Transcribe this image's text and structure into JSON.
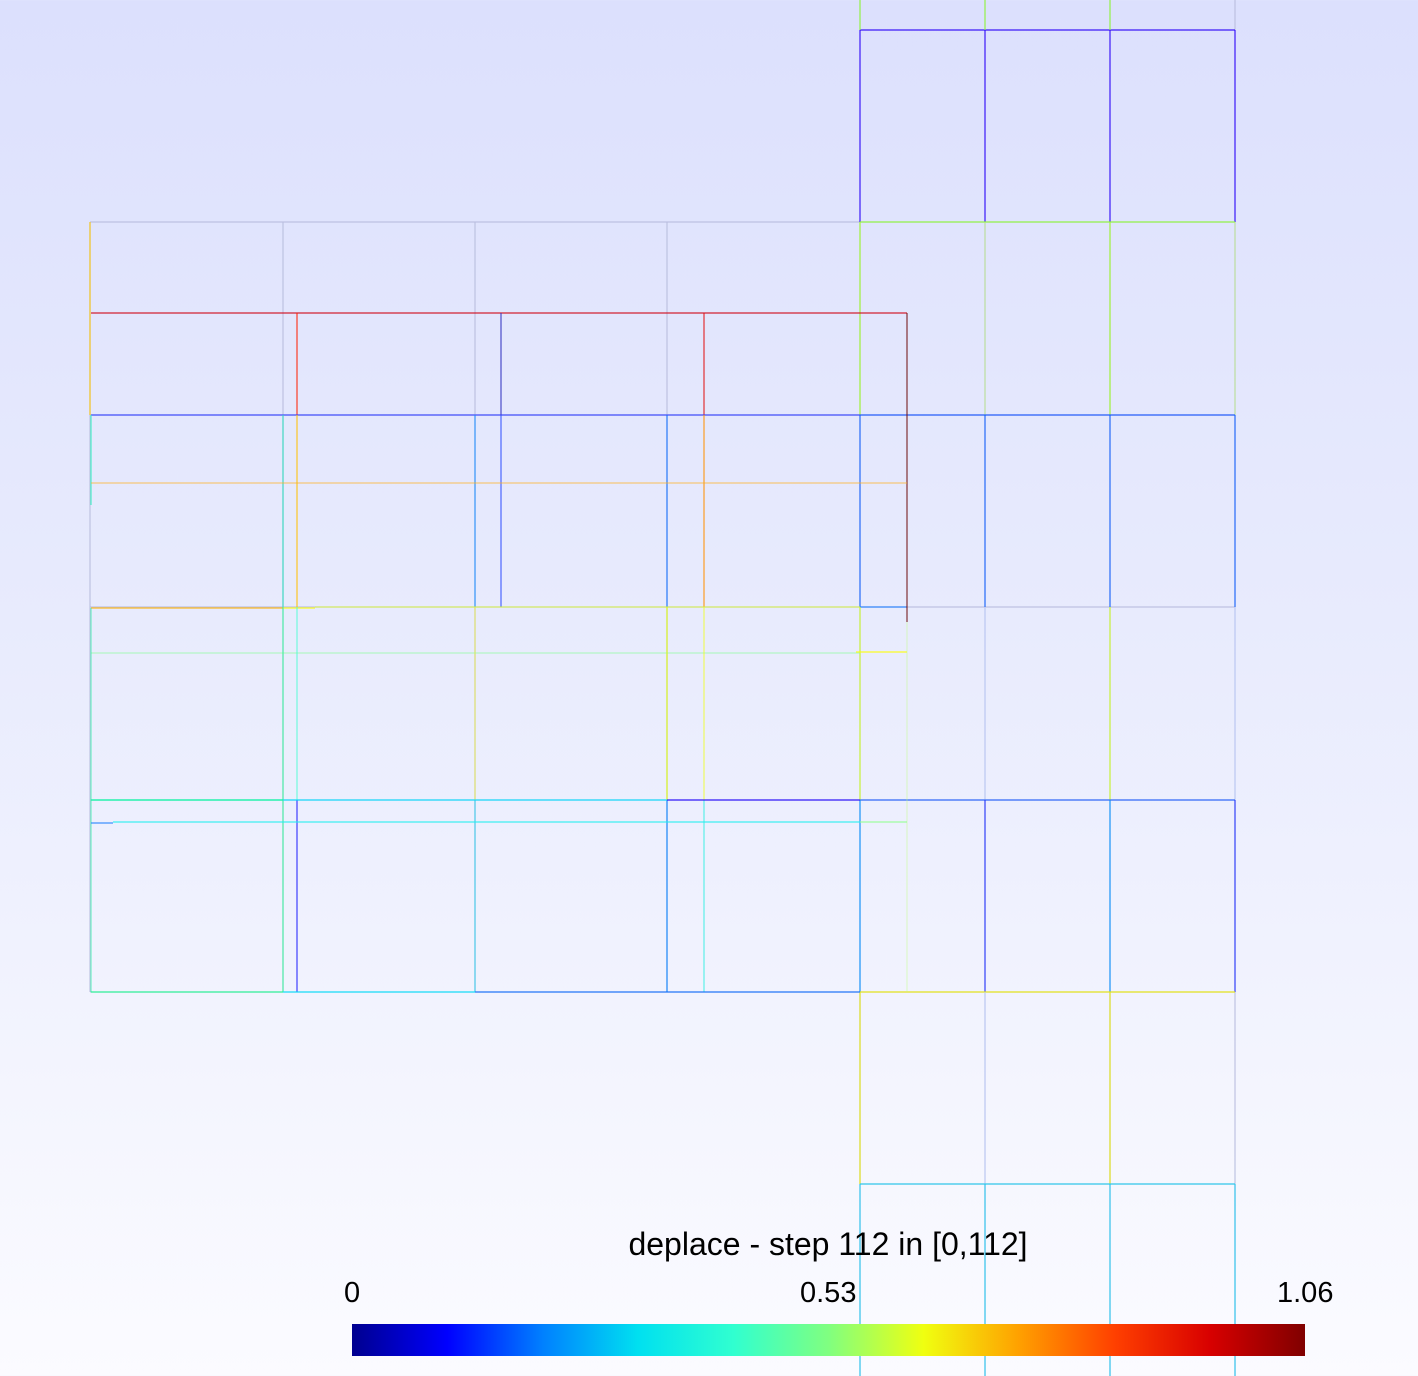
{
  "colorbar": {
    "title": "deplace - step 112 in [0,112]",
    "ticks": [
      "0",
      "0.53",
      "1.06"
    ],
    "range": [
      0,
      1.06
    ],
    "colormap": "jet",
    "colors": [
      "#00008f",
      "#0000ff",
      "#0080ff",
      "#00e0f0",
      "#30ffd0",
      "#80ff80",
      "#f0ff10",
      "#ffa000",
      "#ff4000",
      "#d80000",
      "#800000"
    ]
  },
  "mesh": {
    "background_top": "#dce0fd",
    "background_bottom": "#fbfbff"
  }
}
